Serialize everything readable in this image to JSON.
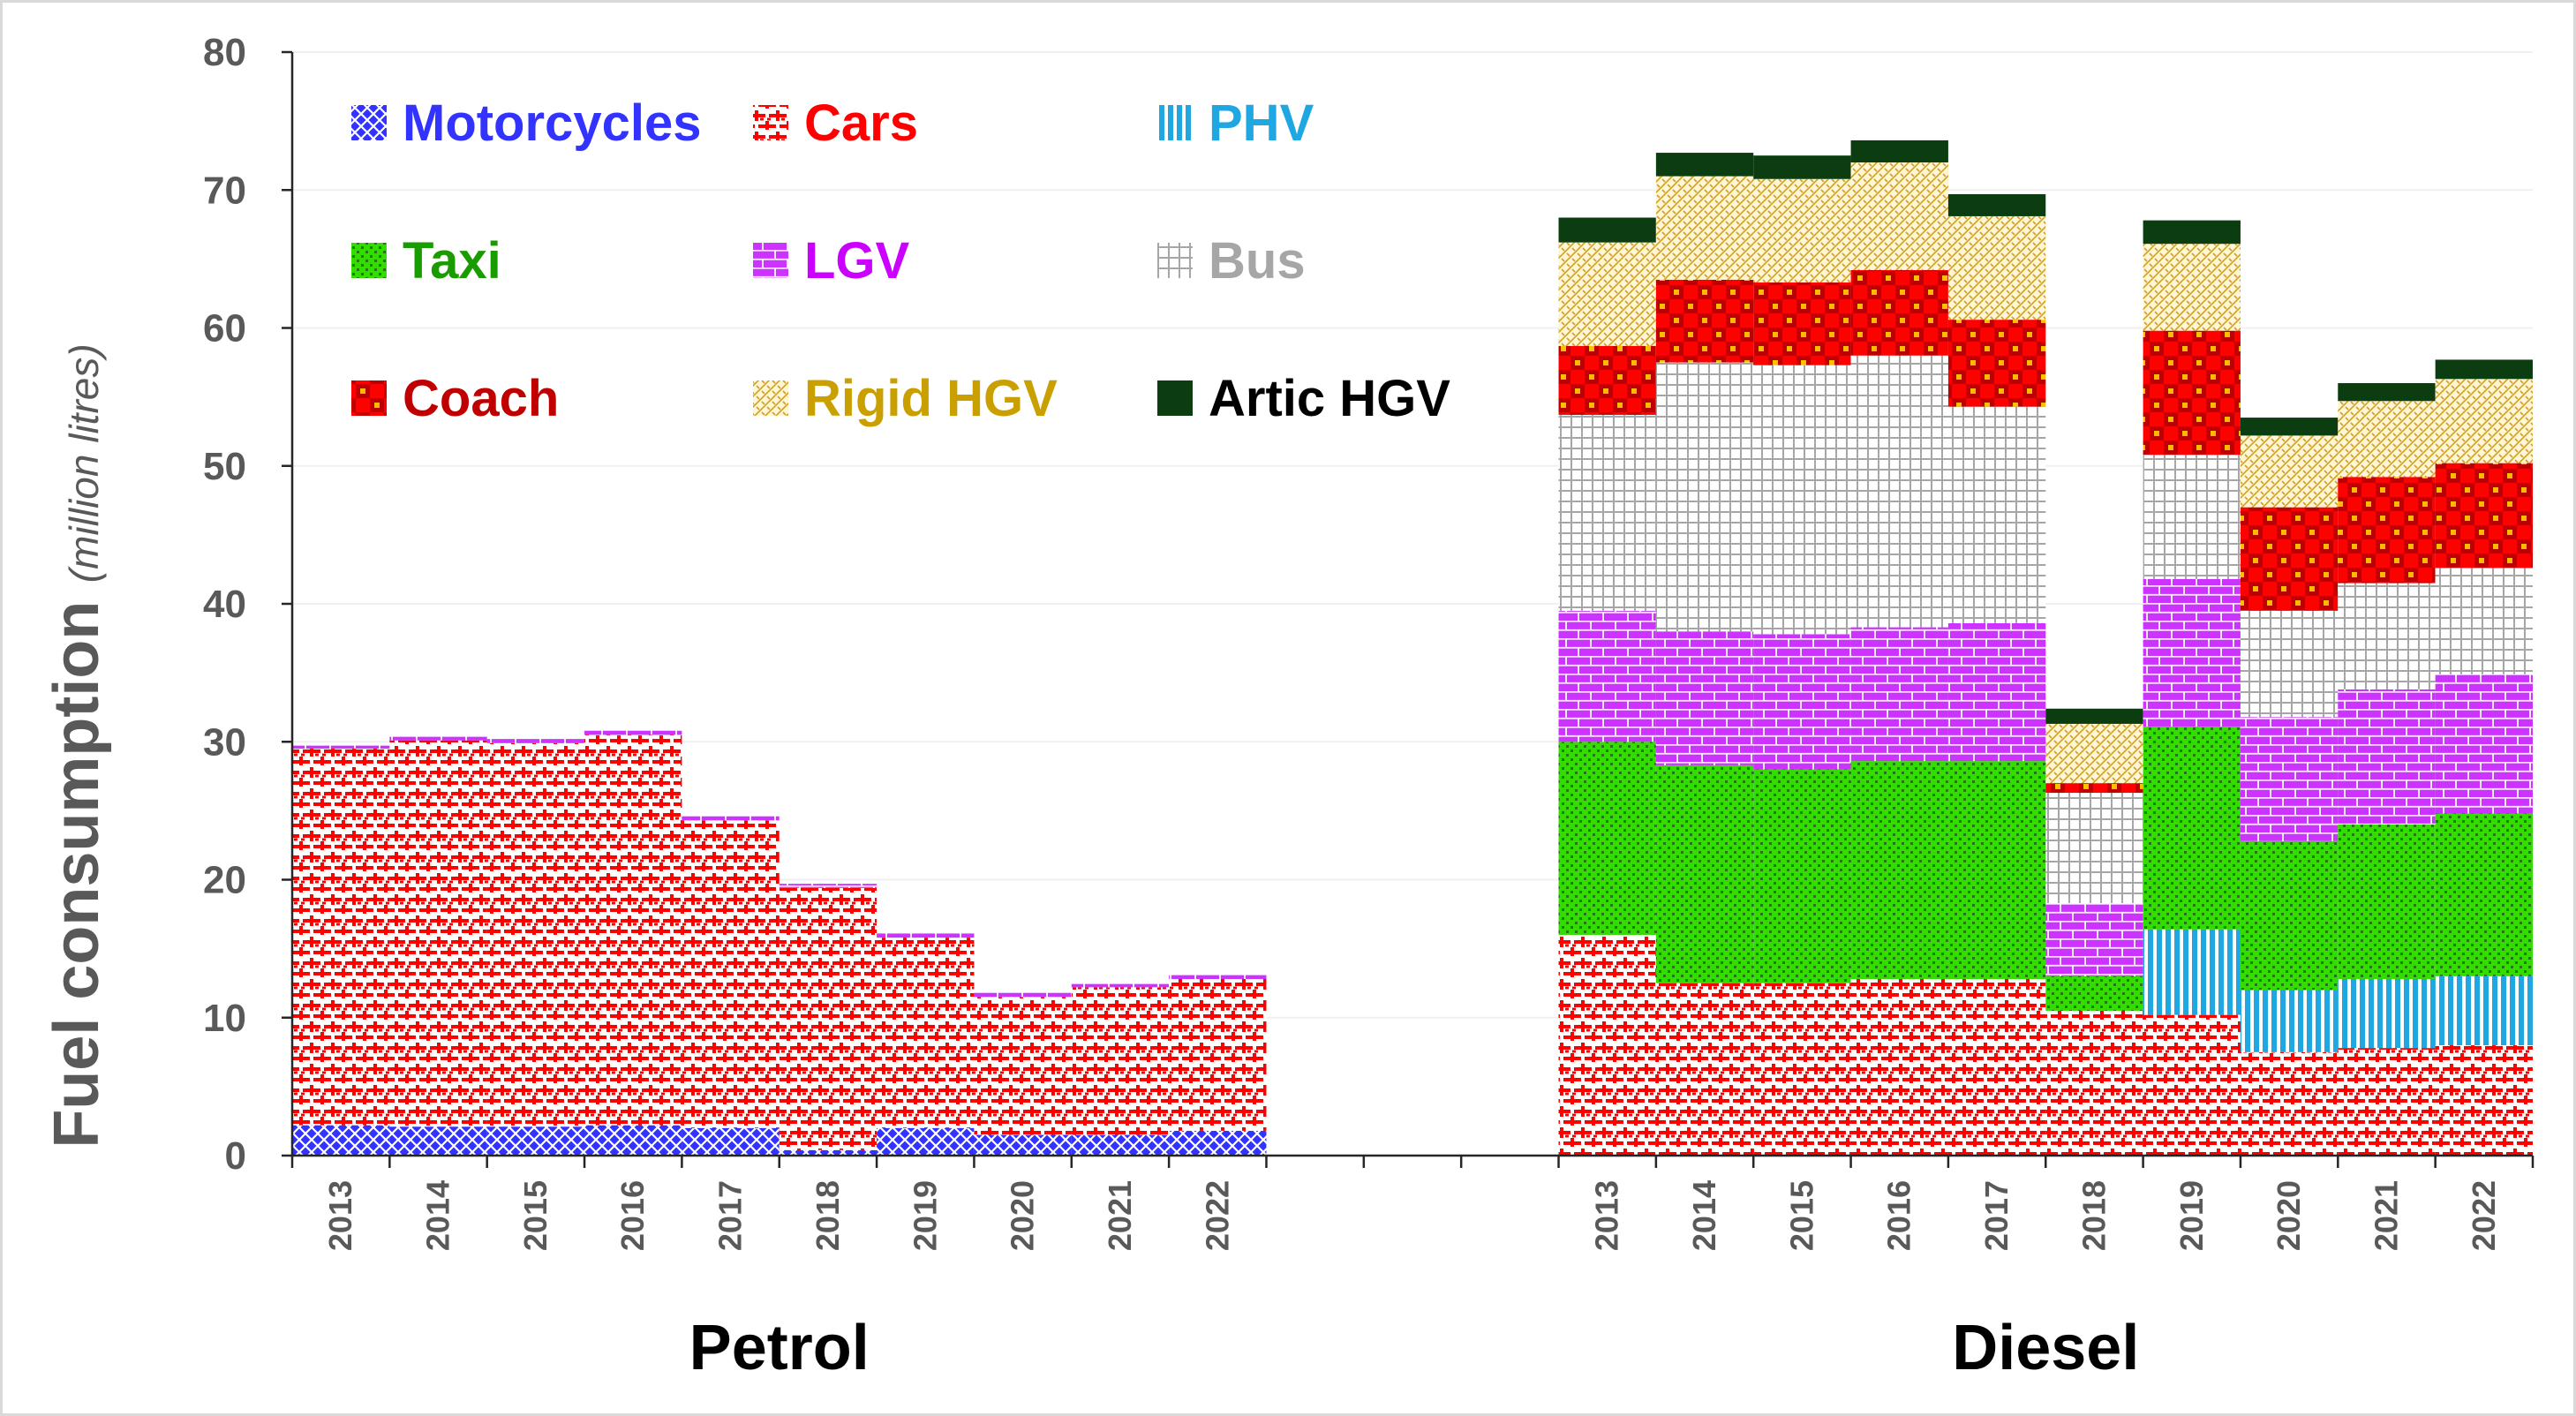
{
  "chart_data": {
    "type": "bar",
    "stacked": true,
    "ylabel": "Fuel consumption",
    "ylabel_unit": "(million litres)",
    "ylim": [
      0,
      80
    ],
    "y_ticks": [
      0,
      10,
      20,
      30,
      40,
      50,
      60,
      70,
      80
    ],
    "gridlines": true,
    "legend_placement": "top-left",
    "categories": [
      "2013",
      "2014",
      "2015",
      "2016",
      "2017",
      "2018",
      "2019",
      "2020",
      "2021",
      "2022"
    ],
    "series": [
      {
        "name": "Motorcycles",
        "color": "#3333ff",
        "pattern": "cross-diamond",
        "text_color": "#3333ff"
      },
      {
        "name": "Cars",
        "color": "#ff0000",
        "pattern": "plus-dots",
        "text_color": "#ff0000"
      },
      {
        "name": "PHV",
        "color": "#1ea7e1",
        "pattern": "vertical-stripes",
        "text_color": "#1ea7e1"
      },
      {
        "name": "Taxi",
        "color": "#33dd00",
        "pattern": "green-dots",
        "text_color": "#199c00"
      },
      {
        "name": "LGV",
        "color": "#cc33ff",
        "pattern": "bricks",
        "text_color": "#cc00ff"
      },
      {
        "name": "Bus",
        "color": "#a6a6a6",
        "pattern": "grid",
        "text_color": "#a6a6a6"
      },
      {
        "name": "Coach",
        "color": "#ff0000",
        "pattern": "checker",
        "text_color": "#c00000"
      },
      {
        "name": "Rigid HGV",
        "color": "#d4a017",
        "pattern": "weave",
        "text_color": "#c9a000"
      },
      {
        "name": "Artic HGV",
        "color": "#0b3d11",
        "pattern": "solid",
        "text_color": "#000000"
      }
    ],
    "groups": [
      {
        "name": "Petrol",
        "values": {
          "Motorcycles": [
            2.2,
            2.1,
            2.1,
            2.2,
            2.0,
            0.4,
            2.0,
            1.5,
            1.5,
            1.8
          ],
          "Cars": [
            27.3,
            28.0,
            27.8,
            28.3,
            22.3,
            19.0,
            13.8,
            10.0,
            10.7,
            11.0
          ],
          "PHV": [
            0,
            0,
            0,
            0,
            0,
            0,
            0,
            0,
            0,
            0
          ],
          "Taxi": [
            0,
            0,
            0,
            0,
            0,
            0,
            0,
            0,
            0,
            0
          ],
          "LGV": [
            0.3,
            0.3,
            0.3,
            0.3,
            0.3,
            0.3,
            0.3,
            0.3,
            0.3,
            0.3
          ],
          "Bus": [
            0,
            0,
            0,
            0,
            0,
            0,
            0,
            0,
            0,
            0
          ],
          "Coach": [
            0,
            0,
            0,
            0,
            0,
            0,
            0,
            0,
            0,
            0
          ],
          "Rigid HGV": [
            0,
            0,
            0,
            0,
            0,
            0,
            0,
            0,
            0,
            0
          ],
          "Artic HGV": [
            0,
            0,
            0,
            0,
            0,
            0,
            0,
            0,
            0,
            0
          ]
        }
      },
      {
        "name": "Diesel",
        "values": {
          "Motorcycles": [
            0,
            0,
            0,
            0,
            0,
            0,
            0,
            0,
            0,
            0
          ],
          "Cars": [
            16.0,
            12.5,
            12.5,
            12.8,
            12.8,
            10.5,
            10.2,
            7.5,
            7.8,
            8.0
          ],
          "PHV": [
            0,
            0,
            0,
            0,
            0,
            0,
            6.2,
            4.5,
            5.0,
            5.0
          ],
          "Taxi": [
            14.0,
            15.8,
            15.5,
            15.8,
            15.8,
            2.5,
            14.7,
            10.8,
            11.2,
            11.8
          ],
          "LGV": [
            9.5,
            9.7,
            9.8,
            9.7,
            10.0,
            5.3,
            10.7,
            9.0,
            9.8,
            10.1
          ],
          "Bus": [
            14.2,
            19.5,
            19.5,
            19.7,
            15.7,
            8.0,
            9.0,
            7.7,
            7.7,
            7.7
          ],
          "Coach": [
            5.0,
            6.0,
            6.0,
            6.2,
            6.3,
            0.7,
            9.0,
            7.5,
            7.7,
            7.6
          ],
          "Rigid HGV": [
            7.5,
            7.5,
            7.5,
            7.8,
            7.5,
            4.3,
            6.3,
            5.2,
            5.5,
            6.1
          ],
          "Artic HGV": [
            1.8,
            1.7,
            1.7,
            1.6,
            1.6,
            1.1,
            1.7,
            1.3,
            1.3,
            1.4
          ]
        }
      }
    ]
  }
}
